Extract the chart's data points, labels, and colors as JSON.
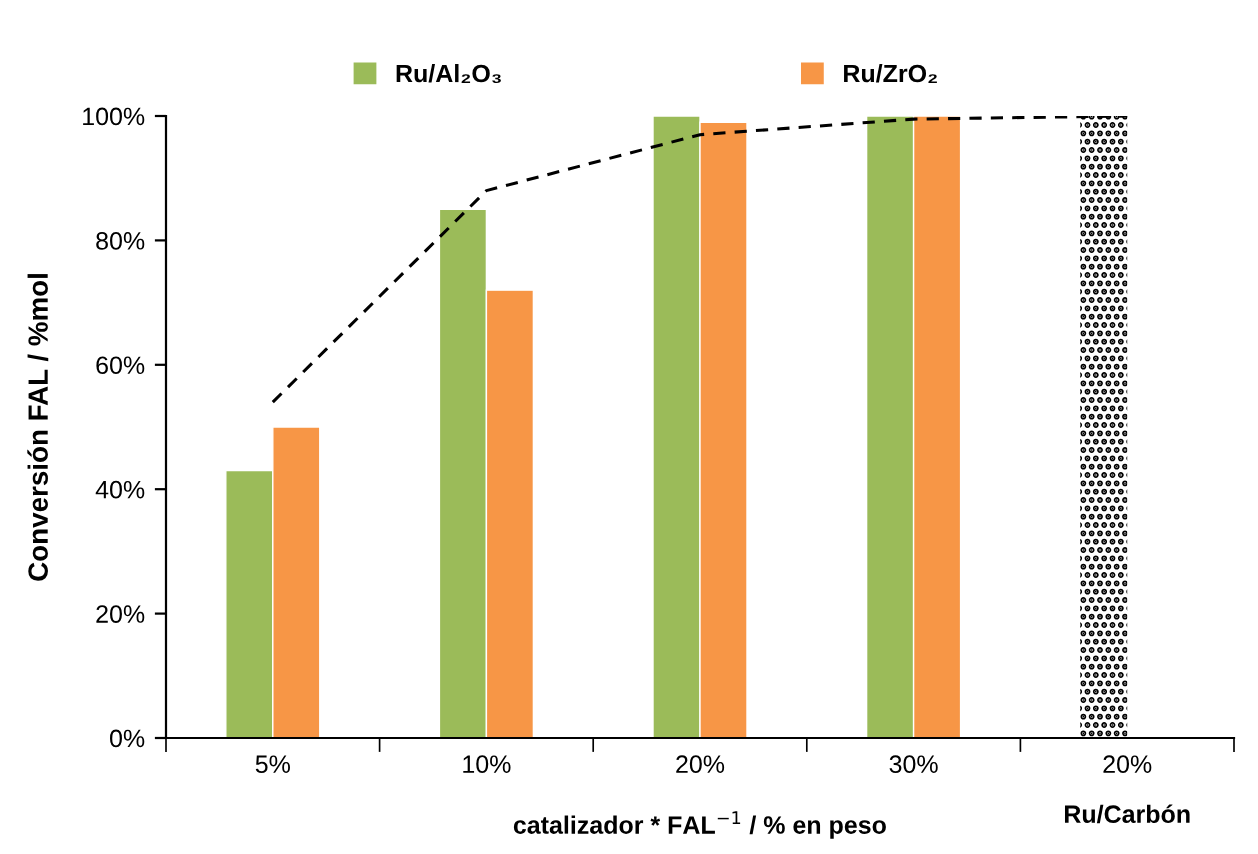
{
  "chart_data": {
    "type": "bar",
    "categories": [
      "5%",
      "10%",
      "20%",
      "30%",
      "20%"
    ],
    "series": [
      {
        "name": "Ru/Al₂O₃",
        "color": "#9bbb59",
        "values": [
          43,
          85,
          100,
          100,
          null
        ]
      },
      {
        "name": "Ru/ZrO₂",
        "color": "#f79646",
        "values": [
          50,
          72,
          99,
          100,
          null
        ]
      },
      {
        "color": "#000000",
        "values": [
          null,
          null,
          null,
          null,
          100
        ]
      },
      {
        "type": "line",
        "color": "#000000",
        "line_style": "dashed",
        "values": [
          54,
          88,
          97,
          99.5,
          100
        ]
      }
    ],
    "xlabel": "catalizador * FAL$^{−1}$ / % en peso",
    "ylabel": "Conversión FAL / %mol",
    "annotations": [
      "Ru/Carbón"
    ],
    "ylim": [
      0,
      100
    ],
    "yticks": [
      {
        "value": 0,
        "label": "0%"
      },
      {
        "value": 20,
        "label": "20%"
      },
      {
        "value": 40,
        "label": "40%"
      },
      {
        "value": 60,
        "label": "60%"
      },
      {
        "value": 80,
        "label": "80%"
      },
      {
        "value": 100,
        "label": "100%"
      }
    ],
    "legend": "top",
    "grid": false
  }
}
